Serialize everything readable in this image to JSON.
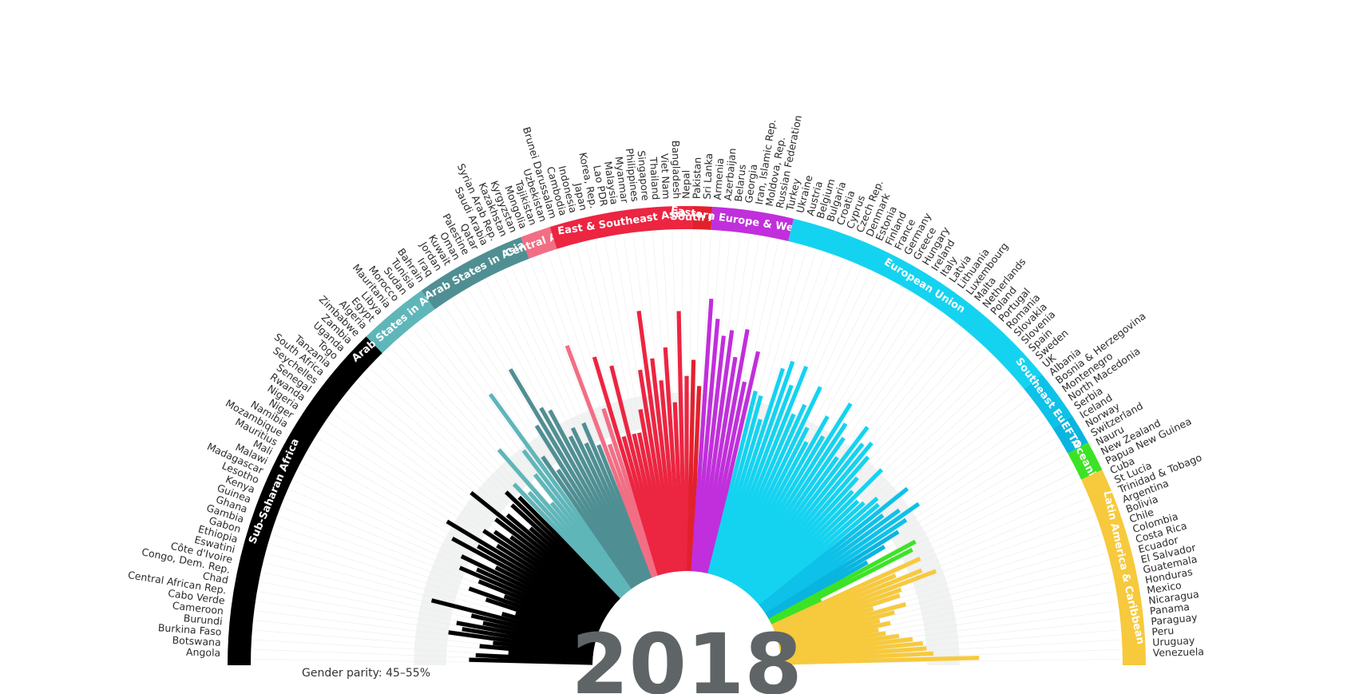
{
  "year": "2018",
  "parity_label": "Gender parity: 45–55%",
  "chart_data": {
    "type": "radial-bar",
    "title": "",
    "xlabel": "",
    "ylabel": "",
    "ylim": [
      0,
      100
    ],
    "parity_band": [
      45,
      55
    ],
    "regions": [
      {
        "name": "Sub-Saharan Africa",
        "color": "#000000",
        "countries": [
          {
            "name": "Angola",
            "value": 38
          },
          {
            "name": "Botswana",
            "value": 36
          },
          {
            "name": "Burkina Faso",
            "value": 26
          },
          {
            "name": "Burundi",
            "value": 35
          },
          {
            "name": "Cameroon",
            "value": 31
          },
          {
            "name": "Cabo Verde",
            "value": 45
          },
          {
            "name": "Central African Rep.",
            "value": 41
          },
          {
            "name": "Chad",
            "value": 43
          },
          {
            "name": "Congo, Dem. Rep.",
            "value": 35
          },
          {
            "name": "Côte d'Ivoire",
            "value": 39
          },
          {
            "name": "Eswatini",
            "value": 52
          },
          {
            "name": "Ethiopia",
            "value": 30
          },
          {
            "name": "Gabon",
            "value": 26
          },
          {
            "name": "Gambia",
            "value": 36
          },
          {
            "name": "Ghana",
            "value": 42
          },
          {
            "name": "Guinea",
            "value": 31
          },
          {
            "name": "Kenya",
            "value": 40
          },
          {
            "name": "Lesotho",
            "value": 47
          },
          {
            "name": "Madagascar",
            "value": 42
          },
          {
            "name": "Malawi",
            "value": 48
          },
          {
            "name": "Mali",
            "value": 37
          },
          {
            "name": "Mauritius",
            "value": 53
          },
          {
            "name": "Mozambique",
            "value": 45
          },
          {
            "name": "Namibia",
            "value": 57
          },
          {
            "name": "Niger",
            "value": 40
          },
          {
            "name": "Nigeria",
            "value": 46
          },
          {
            "name": "Rwanda",
            "value": 43
          },
          {
            "name": "Senegal",
            "value": 38
          },
          {
            "name": "Seychelles",
            "value": 45
          },
          {
            "name": "South Africa",
            "value": 56
          },
          {
            "name": "Tanzania",
            "value": 43
          },
          {
            "name": "Togo",
            "value": 35
          },
          {
            "name": "Uganda",
            "value": 44
          },
          {
            "name": "Zambia",
            "value": 48
          },
          {
            "name": "Zimbabwe",
            "value": 44
          }
        ]
      },
      {
        "name": "Arab States in Africa",
        "color": "#5fb6b9",
        "countries": [
          {
            "name": "Algeria",
            "value": 48
          },
          {
            "name": "Egypt",
            "value": 43
          },
          {
            "name": "Libya",
            "value": 59
          },
          {
            "name": "Mauritania",
            "value": 36
          },
          {
            "name": "Morocco",
            "value": 46
          },
          {
            "name": "Sudan",
            "value": 54
          },
          {
            "name": "Tunisia",
            "value": 74
          }
        ]
      },
      {
        "name": "Arab States in Asia",
        "color": "#4f8f93",
        "countries": [
          {
            "name": "Bahrain",
            "value": 49
          },
          {
            "name": "Iraq",
            "value": 43
          },
          {
            "name": "Jordan",
            "value": 58
          },
          {
            "name": "Kuwait",
            "value": 77
          },
          {
            "name": "Oman",
            "value": 62
          },
          {
            "name": "Palestine",
            "value": 60
          },
          {
            "name": "Qatar",
            "value": 50
          },
          {
            "name": "Saudi Arabia",
            "value": 52
          },
          {
            "name": "Syrian Arab Rep.",
            "value": 46
          },
          {
            "name": "Kazakhstan",
            "value": 52
          },
          {
            "name": "Kyrgyzstan",
            "value": 44
          }
        ]
      },
      {
        "name": "Central Asia",
        "color": "#f26e84",
        "countries": [
          {
            "name": "Mongolia",
            "value": 76
          },
          {
            "name": "Tajikistan",
            "value": 43
          },
          {
            "name": "Uzbekistan",
            "value": 54
          }
        ]
      },
      {
        "name": "East & Southeast Asia",
        "color": "#ec2541",
        "countries": [
          {
            "name": "Brunei Darussalam",
            "value": 70
          },
          {
            "name": "Cambodia",
            "value": 44
          },
          {
            "name": "Indonesia",
            "value": 66
          },
          {
            "name": "Japan",
            "value": 44
          },
          {
            "name": "Korea, Rep.",
            "value": 44
          },
          {
            "name": "Lao PDR",
            "value": 51
          },
          {
            "name": "Malaysia",
            "value": 63
          },
          {
            "name": "Myanmar",
            "value": 81
          },
          {
            "name": "Philippines",
            "value": 66
          },
          {
            "name": "Singapore",
            "value": 59
          },
          {
            "name": "Thailand",
            "value": 69
          },
          {
            "name": "Viet Nam",
            "value": 52
          },
          {
            "name": "Bangladesh",
            "value": 80
          },
          {
            "name": "Nepal",
            "value": 60
          }
        ]
      },
      {
        "name": "South Asia",
        "color": "#e2212c",
        "countries": [
          {
            "name": "Pakistan",
            "value": 65
          },
          {
            "name": "Sri Lanka",
            "value": 57
          }
        ]
      },
      {
        "name": "Eastern Europe & West Asia",
        "color": "#c02fdb",
        "countries": [
          {
            "name": "Armenia",
            "value": 84
          },
          {
            "name": "Azerbaijan",
            "value": 78
          },
          {
            "name": "Belarus",
            "value": 73
          },
          {
            "name": "Georgia",
            "value": 75
          },
          {
            "name": "Iran, Islamic Rep.",
            "value": 67
          },
          {
            "name": "Moldova, Rep.",
            "value": 76
          },
          {
            "name": "Russian Federation",
            "value": 60
          },
          {
            "name": "Turkey",
            "value": 70
          }
        ]
      },
      {
        "name": "European Union",
        "color": "#14d3f0",
        "countries": [
          {
            "name": "Ukraine",
            "value": 58
          },
          {
            "name": "Austria",
            "value": 57
          },
          {
            "name": "Belgium",
            "value": 50
          },
          {
            "name": "Bulgaria",
            "value": 67
          },
          {
            "name": "Croatia",
            "value": 70
          },
          {
            "name": "Cyprus",
            "value": 63
          },
          {
            "name": "Czech Rep.",
            "value": 70
          },
          {
            "name": "Denmark",
            "value": 55
          },
          {
            "name": "Estonia",
            "value": 59
          },
          {
            "name": "Finland",
            "value": 66
          },
          {
            "name": "France",
            "value": 53
          },
          {
            "name": "Germany",
            "value": 49
          },
          {
            "name": "Greece",
            "value": 59
          },
          {
            "name": "Hungary",
            "value": 53
          },
          {
            "name": "Ireland",
            "value": 66
          },
          {
            "name": "Italy",
            "value": 60
          },
          {
            "name": "Latvia",
            "value": 56
          },
          {
            "name": "Lithuania",
            "value": 50
          },
          {
            "name": "Luxembourg",
            "value": 63
          },
          {
            "name": "Malta",
            "value": 58
          },
          {
            "name": "Netherlands",
            "value": 60
          },
          {
            "name": "Poland",
            "value": 56
          },
          {
            "name": "Portugal",
            "value": 49
          },
          {
            "name": "Romania",
            "value": 45
          },
          {
            "name": "Slovakia",
            "value": 56
          },
          {
            "name": "Slovenia",
            "value": 44
          },
          {
            "name": "Spain",
            "value": 45
          },
          {
            "name": "Sweden",
            "value": 49
          },
          {
            "name": "UK",
            "value": 48
          }
        ]
      },
      {
        "name": "Southeast Europe",
        "color": "#0ec1e8",
        "countries": [
          {
            "name": "Albania",
            "value": 58
          },
          {
            "name": "Bosnia & Herzegovina",
            "value": 47
          },
          {
            "name": "Montenegro",
            "value": 52
          },
          {
            "name": "North Macedonia",
            "value": 58
          },
          {
            "name": "Serbia",
            "value": 52
          }
        ]
      },
      {
        "name": "EFTA",
        "color": "#09b5df",
        "countries": [
          {
            "name": "Iceland",
            "value": 48
          },
          {
            "name": "Norway",
            "value": 42
          },
          {
            "name": "Switzerland",
            "value": 35
          }
        ]
      },
      {
        "name": "Oceania",
        "color": "#3ce325",
        "countries": [
          {
            "name": "Nauru",
            "value": 51
          },
          {
            "name": "New Zealand",
            "value": 49
          },
          {
            "name": "Papua New Guinea",
            "value": 17
          }
        ]
      },
      {
        "name": "Latin America & Caribbean",
        "color": "#f7c93c",
        "countries": [
          {
            "name": "Cuba",
            "value": 50
          },
          {
            "name": "St Lucia",
            "value": 41
          },
          {
            "name": "Trinidad & Tobago",
            "value": 49
          },
          {
            "name": "Argentina",
            "value": 53
          },
          {
            "name": "Bolivia",
            "value": 41
          },
          {
            "name": "Chile",
            "value": 40
          },
          {
            "name": "Colombia",
            "value": 31
          },
          {
            "name": "Costa Rica",
            "value": 41
          },
          {
            "name": "Ecuador",
            "value": 37
          },
          {
            "name": "El Salvador",
            "value": 32
          },
          {
            "name": "Guatemala",
            "value": 35
          },
          {
            "name": "Honduras",
            "value": 31
          },
          {
            "name": "Mexico",
            "value": 33
          },
          {
            "name": "Nicaragua",
            "value": 37
          },
          {
            "name": "Panama",
            "value": 41
          },
          {
            "name": "Paraguay",
            "value": 44
          },
          {
            "name": "Peru",
            "value": 45
          },
          {
            "name": "Uruguay",
            "value": 47
          },
          {
            "name": "Venezuela",
            "value": 61
          }
        ]
      }
    ]
  }
}
